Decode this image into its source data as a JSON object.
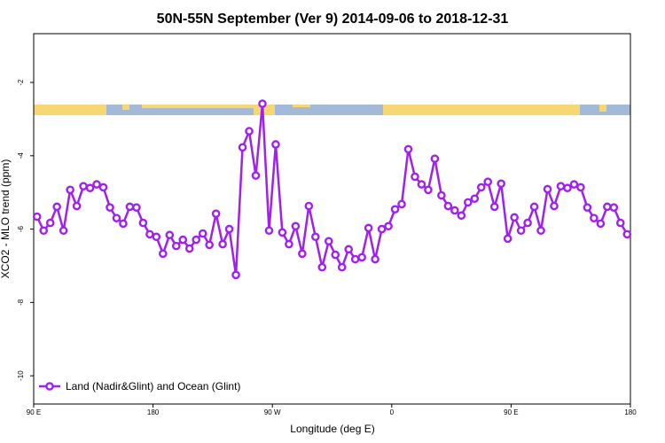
{
  "chart_data": {
    "type": "line",
    "title": "50N-55N September (Ver 9)   2014-09-06 to 2018-12-31",
    "x_label": "Longitude (deg E)",
    "y_label": "XCO2 - MLO trend (ppm)",
    "x": [
      92.5,
      97.5,
      102.5,
      107.5,
      112.5,
      117.5,
      122.5,
      127.5,
      132.5,
      137.5,
      142.5,
      147.5,
      152.5,
      157.5,
      162.5,
      167.5,
      172.5,
      177.5,
      182.5,
      187.5,
      192.5,
      197.5,
      202.5,
      207.5,
      212.5,
      217.5,
      222.5,
      227.5,
      232.5,
      237.5,
      242.5,
      247.5,
      252.5,
      257.5,
      262.5,
      267.5,
      272.5,
      277.5,
      282.5,
      287.5,
      292.5,
      297.5,
      302.5,
      307.5,
      312.5,
      317.5,
      322.5,
      327.5,
      332.5,
      337.5,
      342.5,
      347.5,
      352.5,
      357.5,
      362.5,
      367.5,
      372.5,
      377.5,
      382.5,
      387.5,
      392.5,
      397.5,
      402.5,
      407.5,
      412.5,
      417.5,
      422.5,
      427.5,
      432.5,
      437.5,
      442.5,
      447.5,
      452.5,
      457.5,
      462.5,
      467.5,
      472.5,
      477.5,
      482.5,
      487.5,
      492.5,
      497.5,
      502.5,
      507.5,
      512.5,
      517.5,
      522.5,
      527.5,
      532.5,
      537.5
    ],
    "series": [
      {
        "name": "Land (Nadir&Glint) and Ocean (Glint)",
        "color": "#a020f0",
        "values": [
          -5.66,
          -6.04,
          -5.83,
          -5.39,
          -6.04,
          -4.93,
          -5.37,
          -4.83,
          -4.88,
          -4.78,
          -4.86,
          -5.41,
          -5.7,
          -5.85,
          -5.39,
          -5.41,
          -5.83,
          -6.14,
          -6.21,
          -6.67,
          -6.16,
          -6.46,
          -6.29,
          -6.53,
          -6.29,
          -6.12,
          -6.43,
          -5.58,
          -6.41,
          -6.0,
          -7.25,
          -3.77,
          -3.33,
          -4.54,
          -2.58,
          -6.04,
          -3.69,
          -6.09,
          -6.41,
          -5.92,
          -6.67,
          -5.37,
          -6.21,
          -7.04,
          -6.33,
          -6.7,
          -7.04,
          -6.55,
          -6.82,
          -6.77,
          -5.97,
          -6.82,
          -6.0,
          -5.92,
          -5.46,
          -5.32,
          -3.82,
          -4.57,
          -4.78,
          -4.93,
          -4.08,
          -5.08,
          -5.37,
          -5.49,
          -5.63,
          -5.27,
          -5.17,
          -4.86,
          -4.71,
          -5.39,
          -4.76,
          -6.26,
          -5.68,
          -6.04,
          -5.83,
          -5.39,
          -6.04,
          -4.91,
          -5.37,
          -4.83,
          -4.88,
          -4.78,
          -4.86,
          -5.41,
          -5.7,
          -5.85,
          -5.39,
          -5.41,
          -5.83,
          -6.14
        ]
      }
    ],
    "xlim": [
      90,
      540
    ],
    "xticks": [
      {
        "value": 90,
        "label": "90 E"
      },
      180,
      {
        "value": 270,
        "label": "90 W"
      },
      {
        "value": 360,
        "label": "0"
      },
      {
        "value": 450,
        "label": "90 E"
      },
      {
        "value": 540,
        "label": "180"
      }
    ],
    "ylim": [
      -10.77,
      -0.67
    ],
    "yticks": [
      -10,
      -8,
      -6,
      -4,
      -2
    ],
    "legend": "bottom-left"
  }
}
